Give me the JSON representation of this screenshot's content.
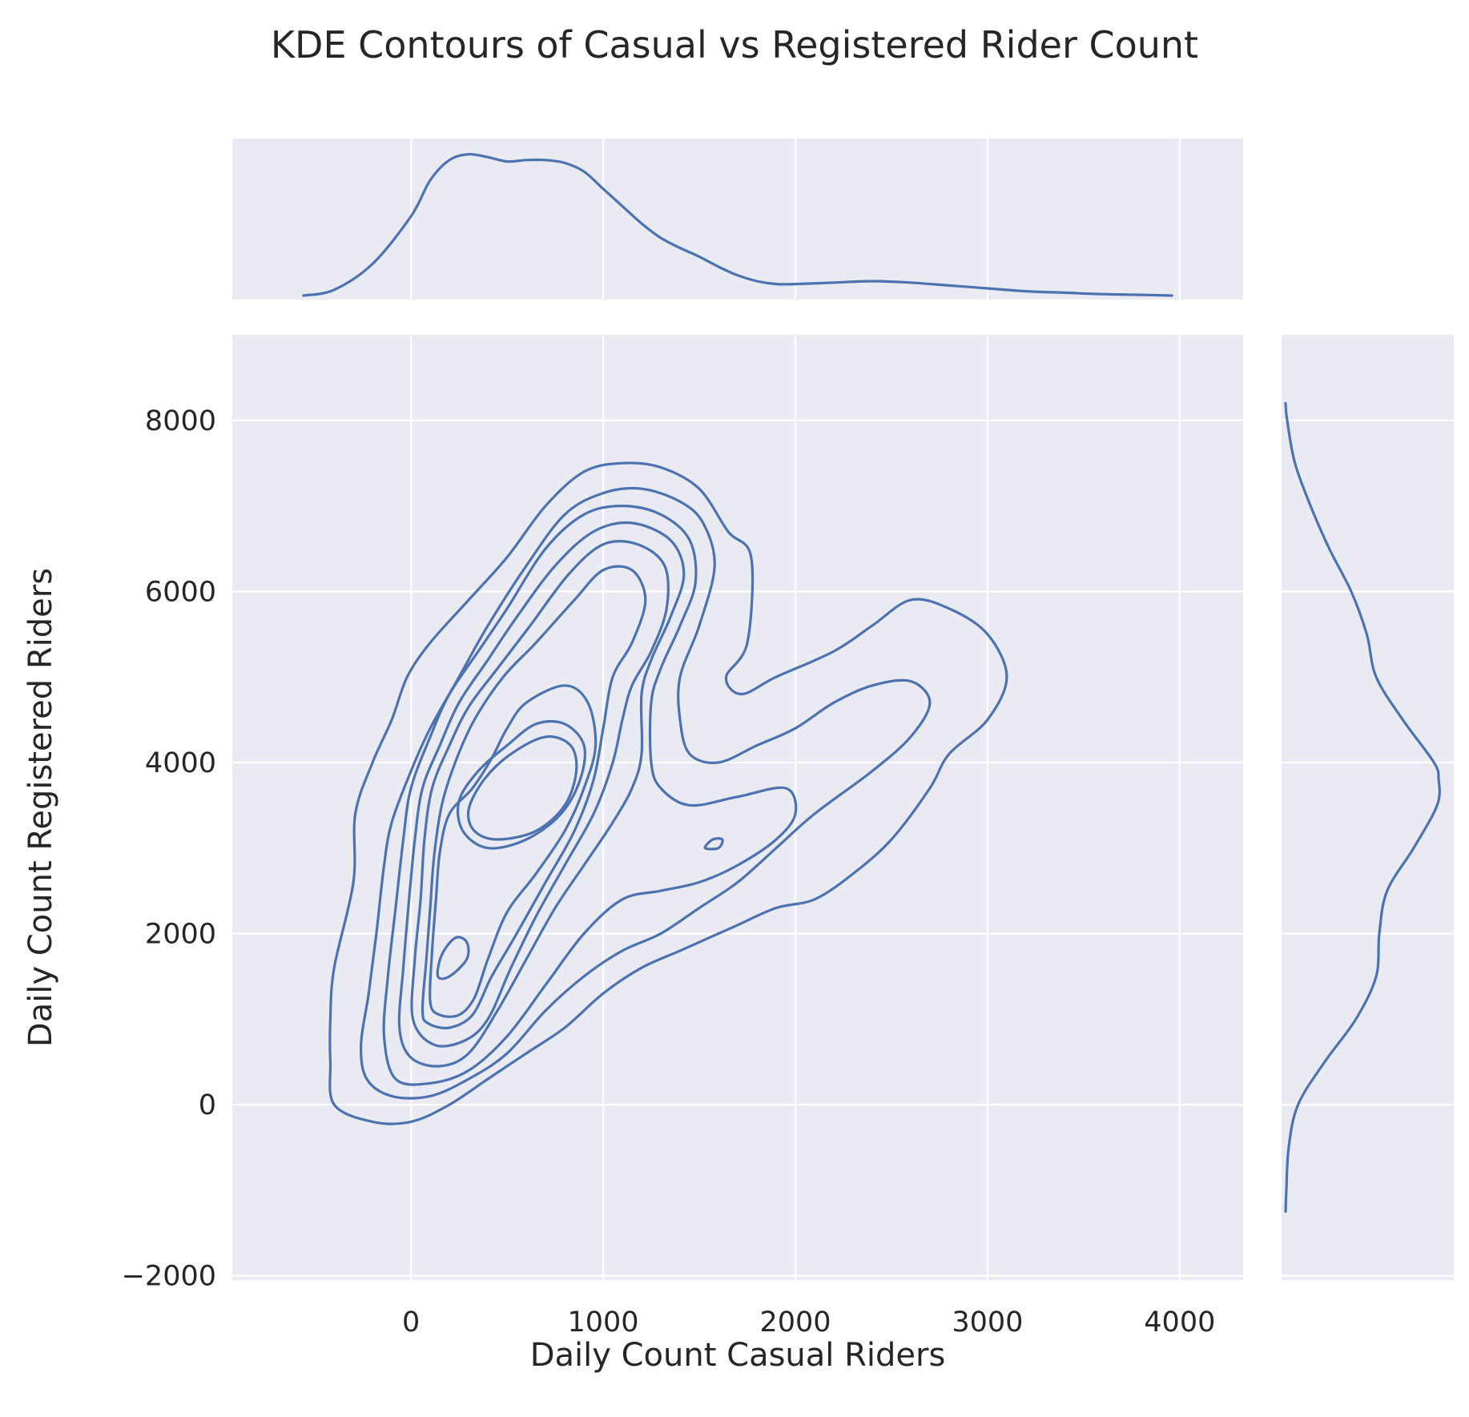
{
  "chart_data": {
    "type": "kde_joint",
    "title": "KDE Contours of Casual vs Registered Rider Count",
    "xlabel": "Daily Count Casual Riders",
    "ylabel": "Daily Count Registered Riders",
    "xlim": [
      -930,
      4330
    ],
    "ylim": [
      -2050,
      9000
    ],
    "x_ticks": [
      0,
      1000,
      2000,
      3000,
      4000
    ],
    "y_ticks": [
      -2000,
      0,
      2000,
      4000,
      6000,
      8000
    ],
    "x_tick_labels": [
      "0",
      "1000",
      "2000",
      "3000",
      "4000"
    ],
    "y_tick_labels": [
      "−2000",
      "0",
      "2000",
      "4000",
      "6000",
      "8000"
    ],
    "grid": true,
    "color": "#4c72b0",
    "background": "#eaeaf2",
    "contours": [
      {
        "level": 1,
        "points": [
          [
            -420,
            1000
          ],
          [
            -400,
            1600
          ],
          [
            -300,
            2600
          ],
          [
            -290,
            3400
          ],
          [
            -200,
            4000
          ],
          [
            -100,
            4500
          ],
          [
            -20,
            5000
          ],
          [
            100,
            5400
          ],
          [
            300,
            5900
          ],
          [
            500,
            6400
          ],
          [
            700,
            7000
          ],
          [
            900,
            7400
          ],
          [
            1100,
            7500
          ],
          [
            1300,
            7450
          ],
          [
            1500,
            7200
          ],
          [
            1650,
            6700
          ],
          [
            1770,
            6400
          ],
          [
            1750,
            5400
          ],
          [
            1640,
            5000
          ],
          [
            1720,
            4800
          ],
          [
            1900,
            5000
          ],
          [
            2200,
            5300
          ],
          [
            2400,
            5600
          ],
          [
            2600,
            5900
          ],
          [
            2800,
            5800
          ],
          [
            3000,
            5500
          ],
          [
            3100,
            5000
          ],
          [
            3000,
            4500
          ],
          [
            2800,
            4100
          ],
          [
            2700,
            3700
          ],
          [
            2500,
            3100
          ],
          [
            2300,
            2700
          ],
          [
            2100,
            2400
          ],
          [
            1900,
            2300
          ],
          [
            1700,
            2100
          ],
          [
            1600,
            2000
          ],
          [
            1400,
            1800
          ],
          [
            1200,
            1600
          ],
          [
            1000,
            1300
          ],
          [
            800,
            900
          ],
          [
            600,
            600
          ],
          [
            400,
            300
          ],
          [
            200,
            0
          ],
          [
            0,
            -200
          ],
          [
            -200,
            -200
          ],
          [
            -400,
            0
          ],
          [
            -420,
            500
          ]
        ]
      },
      {
        "level": 2,
        "points": [
          [
            -260,
            700
          ],
          [
            -220,
            1300
          ],
          [
            -180,
            2000
          ],
          [
            -140,
            2800
          ],
          [
            -100,
            3300
          ],
          [
            0,
            3900
          ],
          [
            100,
            4400
          ],
          [
            250,
            5000
          ],
          [
            400,
            5600
          ],
          [
            600,
            6300
          ],
          [
            800,
            6900
          ],
          [
            1000,
            7150
          ],
          [
            1200,
            7200
          ],
          [
            1400,
            7050
          ],
          [
            1520,
            6800
          ],
          [
            1580,
            6300
          ],
          [
            1500,
            5600
          ],
          [
            1400,
            5000
          ],
          [
            1400,
            4500
          ],
          [
            1450,
            4100
          ],
          [
            1600,
            4000
          ],
          [
            1800,
            4200
          ],
          [
            2000,
            4400
          ],
          [
            2200,
            4700
          ],
          [
            2400,
            4900
          ],
          [
            2600,
            4950
          ],
          [
            2700,
            4700
          ],
          [
            2600,
            4300
          ],
          [
            2400,
            3900
          ],
          [
            2100,
            3400
          ],
          [
            1900,
            3000
          ],
          [
            1700,
            2600
          ],
          [
            1500,
            2300
          ],
          [
            1300,
            2000
          ],
          [
            1100,
            1800
          ],
          [
            900,
            1500
          ],
          [
            700,
            1100
          ],
          [
            500,
            600
          ],
          [
            300,
            300
          ],
          [
            100,
            100
          ],
          [
            -100,
            100
          ],
          [
            -230,
            300
          ]
        ]
      },
      {
        "level": 3,
        "points": [
          [
            -140,
            800
          ],
          [
            -120,
            1500
          ],
          [
            -80,
            2300
          ],
          [
            -40,
            3100
          ],
          [
            0,
            3700
          ],
          [
            100,
            4300
          ],
          [
            200,
            4800
          ],
          [
            350,
            5300
          ],
          [
            500,
            5800
          ],
          [
            700,
            6500
          ],
          [
            900,
            6900
          ],
          [
            1100,
            7000
          ],
          [
            1300,
            6900
          ],
          [
            1450,
            6600
          ],
          [
            1480,
            6100
          ],
          [
            1400,
            5600
          ],
          [
            1300,
            5100
          ],
          [
            1250,
            4700
          ],
          [
            1250,
            4000
          ],
          [
            1300,
            3700
          ],
          [
            1450,
            3500
          ],
          [
            1700,
            3600
          ],
          [
            1950,
            3700
          ],
          [
            2000,
            3400
          ],
          [
            1900,
            3100
          ],
          [
            1700,
            2800
          ],
          [
            1500,
            2600
          ],
          [
            1300,
            2500
          ],
          [
            1100,
            2400
          ],
          [
            900,
            2000
          ],
          [
            700,
            1400
          ],
          [
            500,
            800
          ],
          [
            300,
            400
          ],
          [
            100,
            250
          ],
          [
            -80,
            300
          ]
        ]
      },
      {
        "level": 4,
        "points": [
          [
            -60,
            900
          ],
          [
            -40,
            1600
          ],
          [
            -10,
            2400
          ],
          [
            20,
            3100
          ],
          [
            60,
            3700
          ],
          [
            150,
            4200
          ],
          [
            250,
            4700
          ],
          [
            400,
            5200
          ],
          [
            550,
            5700
          ],
          [
            750,
            6300
          ],
          [
            950,
            6700
          ],
          [
            1150,
            6800
          ],
          [
            1350,
            6600
          ],
          [
            1420,
            6200
          ],
          [
            1350,
            5700
          ],
          [
            1250,
            5200
          ],
          [
            1200,
            4800
          ],
          [
            1200,
            4100
          ],
          [
            1150,
            3700
          ],
          [
            1050,
            3300
          ],
          [
            900,
            2800
          ],
          [
            750,
            2300
          ],
          [
            600,
            1700
          ],
          [
            450,
            1100
          ],
          [
            300,
            600
          ],
          [
            150,
            450
          ],
          [
            0,
            550
          ]
        ]
      },
      {
        "level": 5,
        "points": [
          [
            10,
            1000
          ],
          [
            20,
            1700
          ],
          [
            50,
            2400
          ],
          [
            70,
            3100
          ],
          [
            110,
            3700
          ],
          [
            200,
            4200
          ],
          [
            300,
            4650
          ],
          [
            450,
            5100
          ],
          [
            620,
            5600
          ],
          [
            820,
            6200
          ],
          [
            1000,
            6550
          ],
          [
            1180,
            6550
          ],
          [
            1320,
            6300
          ],
          [
            1330,
            5800
          ],
          [
            1250,
            5300
          ],
          [
            1150,
            4900
          ],
          [
            1100,
            4500
          ],
          [
            1050,
            4000
          ],
          [
            950,
            3400
          ],
          [
            800,
            2800
          ],
          [
            650,
            2200
          ],
          [
            520,
            1600
          ],
          [
            400,
            1000
          ],
          [
            280,
            750
          ],
          [
            120,
            700
          ]
        ]
      },
      {
        "level": 6,
        "points": [
          [
            60,
            1100
          ],
          [
            80,
            1700
          ],
          [
            100,
            2300
          ],
          [
            120,
            2900
          ],
          [
            160,
            3500
          ],
          [
            230,
            4000
          ],
          [
            330,
            4500
          ],
          [
            480,
            5000
          ],
          [
            650,
            5400
          ],
          [
            850,
            5900
          ],
          [
            1000,
            6250
          ],
          [
            1150,
            6250
          ],
          [
            1220,
            5900
          ],
          [
            1150,
            5400
          ],
          [
            1050,
            5000
          ],
          [
            1000,
            4400
          ],
          [
            950,
            3800
          ],
          [
            850,
            3200
          ],
          [
            700,
            2600
          ],
          [
            550,
            2000
          ],
          [
            420,
            1500
          ],
          [
            320,
            1050
          ],
          [
            200,
            900
          ],
          [
            90,
            950
          ]
        ]
      },
      {
        "level": 7,
        "points": [
          [
            100,
            1200
          ],
          [
            110,
            1800
          ],
          [
            130,
            2400
          ],
          [
            150,
            2950
          ],
          [
            200,
            3400
          ],
          [
            320,
            3700
          ],
          [
            420,
            4050
          ],
          [
            500,
            4400
          ],
          [
            600,
            4700
          ],
          [
            800,
            4900
          ],
          [
            920,
            4700
          ],
          [
            960,
            4200
          ],
          [
            900,
            3700
          ],
          [
            800,
            3200
          ],
          [
            650,
            2700
          ],
          [
            500,
            2250
          ],
          [
            400,
            1700
          ],
          [
            330,
            1250
          ],
          [
            250,
            1050
          ],
          [
            150,
            1050
          ]
        ]
      },
      {
        "level": 8,
        "points": [
          [
            250,
            3550
          ],
          [
            350,
            3900
          ],
          [
            500,
            4200
          ],
          [
            650,
            4450
          ],
          [
            800,
            4450
          ],
          [
            900,
            4200
          ],
          [
            880,
            3800
          ],
          [
            780,
            3400
          ],
          [
            600,
            3100
          ],
          [
            400,
            3000
          ],
          [
            270,
            3200
          ]
        ]
      },
      {
        "level": 9,
        "points": [
          [
            300,
            3450
          ],
          [
            380,
            3800
          ],
          [
            520,
            4100
          ],
          [
            700,
            4300
          ],
          [
            830,
            4200
          ],
          [
            860,
            3900
          ],
          [
            800,
            3500
          ],
          [
            650,
            3200
          ],
          [
            450,
            3100
          ],
          [
            330,
            3200
          ]
        ]
      },
      {
        "level": 10,
        "points": [
          [
            140,
            1500
          ],
          [
            160,
            1750
          ],
          [
            230,
            1950
          ],
          [
            290,
            1900
          ],
          [
            290,
            1700
          ],
          [
            200,
            1500
          ]
        ]
      },
      {
        "level": 11,
        "points": [
          [
            1530,
            3000
          ],
          [
            1570,
            3100
          ],
          [
            1620,
            3100
          ],
          [
            1600,
            3000
          ]
        ]
      }
    ],
    "marginal_x": {
      "x": [
        -560,
        -400,
        -200,
        0,
        100,
        200,
        300,
        400,
        500,
        600,
        700,
        800,
        900,
        1000,
        1100,
        1200,
        1300,
        1400,
        1500,
        1600,
        1700,
        1800,
        1900,
        2000,
        2200,
        2400,
        2600,
        2800,
        3000,
        3200,
        3400,
        3600,
        3800,
        3960
      ],
      "density": [
        0.0,
        0.04,
        0.22,
        0.55,
        0.8,
        0.94,
        0.98,
        0.96,
        0.93,
        0.94,
        0.94,
        0.92,
        0.86,
        0.74,
        0.62,
        0.5,
        0.4,
        0.33,
        0.27,
        0.2,
        0.14,
        0.1,
        0.08,
        0.08,
        0.09,
        0.1,
        0.09,
        0.07,
        0.05,
        0.03,
        0.02,
        0.01,
        0.005,
        0.0
      ]
    },
    "marginal_y": {
      "y": [
        -1250,
        -1000,
        -500,
        0,
        500,
        1000,
        1500,
        2000,
        2500,
        3000,
        3500,
        3800,
        4000,
        4500,
        5000,
        5500,
        6000,
        6500,
        7000,
        7500,
        8000,
        8200
      ],
      "density": [
        0.0,
        0.005,
        0.02,
        0.08,
        0.25,
        0.45,
        0.58,
        0.6,
        0.65,
        0.82,
        0.97,
        0.98,
        0.95,
        0.75,
        0.58,
        0.52,
        0.42,
        0.28,
        0.16,
        0.06,
        0.01,
        0.0
      ]
    }
  }
}
